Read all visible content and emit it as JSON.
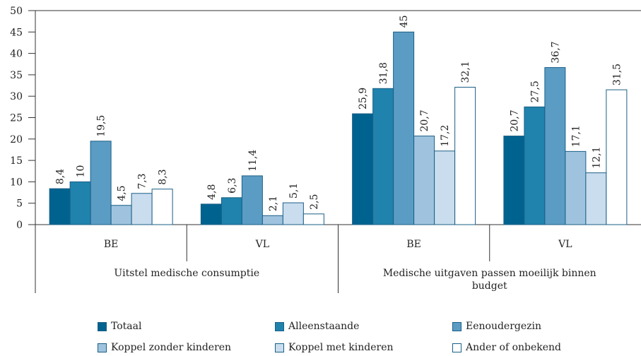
{
  "chart_data": {
    "type": "bar",
    "groups": [
      {
        "name": "Uitstel medische consumptie",
        "categories": [
          "BE",
          "VL"
        ]
      },
      {
        "name": "Medische uitgaven passen moeilijk binnen budget",
        "categories": [
          "BE",
          "VL"
        ]
      }
    ],
    "series": [
      {
        "name": "Totaal",
        "color": "#00638f",
        "values": [
          8.4,
          4.8,
          25.9,
          20.7
        ],
        "value_labels": [
          "8,4",
          "4,8",
          "25,9",
          "20,7"
        ]
      },
      {
        "name": "Alleenstaande",
        "color": "#1f83ad",
        "values": [
          10,
          6.3,
          31.8,
          27.5
        ],
        "value_labels": [
          "10",
          "6,3",
          "31,8",
          "27,5"
        ]
      },
      {
        "name": "Eenoudergezin",
        "color": "#5b9cc5",
        "values": [
          19.5,
          11.4,
          45,
          36.7
        ],
        "value_labels": [
          "19,5",
          "11,4",
          "45",
          "36,7"
        ]
      },
      {
        "name": "Koppel zonder kinderen",
        "color": "#9fc3de",
        "values": [
          4.5,
          2.1,
          20.7,
          17.1
        ],
        "value_labels": [
          "4,5",
          "2,1",
          "20,7",
          "17,1"
        ]
      },
      {
        "name": "Koppel met kinderen",
        "color": "#c9ddee",
        "values": [
          7.3,
          5.1,
          17.2,
          12.1
        ],
        "value_labels": [
          "7,3",
          "5,1",
          "17,2",
          "12,1"
        ]
      },
      {
        "name": "Ander of onbekend",
        "color": "#ffffff",
        "values": [
          8.3,
          2.5,
          32.1,
          31.5
        ],
        "value_labels": [
          "8,3",
          "2,5",
          "32,1",
          "31,5"
        ]
      }
    ],
    "ylim": [
      0,
      50
    ],
    "yticks": [
      0,
      5,
      10,
      15,
      20,
      25,
      30,
      35,
      40,
      45,
      50
    ]
  }
}
